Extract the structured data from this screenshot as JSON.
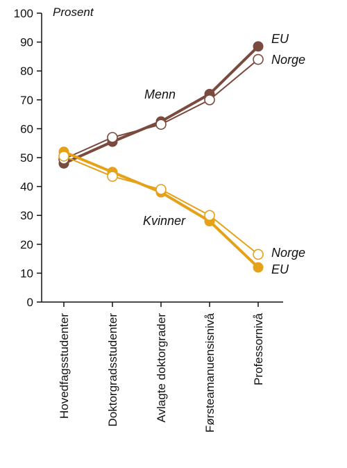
{
  "chart_data": {
    "type": "line",
    "title": "",
    "ylabel": "Prosent",
    "xlabel": "",
    "ylim": [
      0,
      100
    ],
    "yticks": [
      0,
      10,
      20,
      30,
      40,
      50,
      60,
      70,
      80,
      90,
      100
    ],
    "categories": [
      "Hovedfagsstudenter",
      "Doktorgradsstudenter",
      "Avlagte doktorgrader",
      "Førsteamanuensisnivå",
      "Professornivå"
    ],
    "series": [
      {
        "group": "Menn",
        "name": "EU",
        "values": [
          48,
          55.5,
          62.5,
          72,
          88.5
        ],
        "color": "#7b4a3e",
        "marker": "filled"
      },
      {
        "group": "Menn",
        "name": "Norge",
        "values": [
          49.5,
          57,
          61.5,
          70,
          84
        ],
        "color": "#7b4a3e",
        "marker": "open"
      },
      {
        "group": "Kvinner",
        "name": "EU",
        "values": [
          52,
          45,
          38,
          28,
          12
        ],
        "color": "#e5a118",
        "marker": "filled"
      },
      {
        "group": "Kvinner",
        "name": "Norge",
        "values": [
          50.5,
          43.5,
          39,
          30,
          16.5
        ],
        "color": "#e5a118",
        "marker": "open"
      }
    ],
    "annotations": {
      "menn": "Menn",
      "kvinner": "Kvinner",
      "menn_eu": "EU",
      "menn_norge": "Norge",
      "kvinner_norge": "Norge",
      "kvinner_eu": "EU"
    },
    "grid": false,
    "legend": "none"
  }
}
